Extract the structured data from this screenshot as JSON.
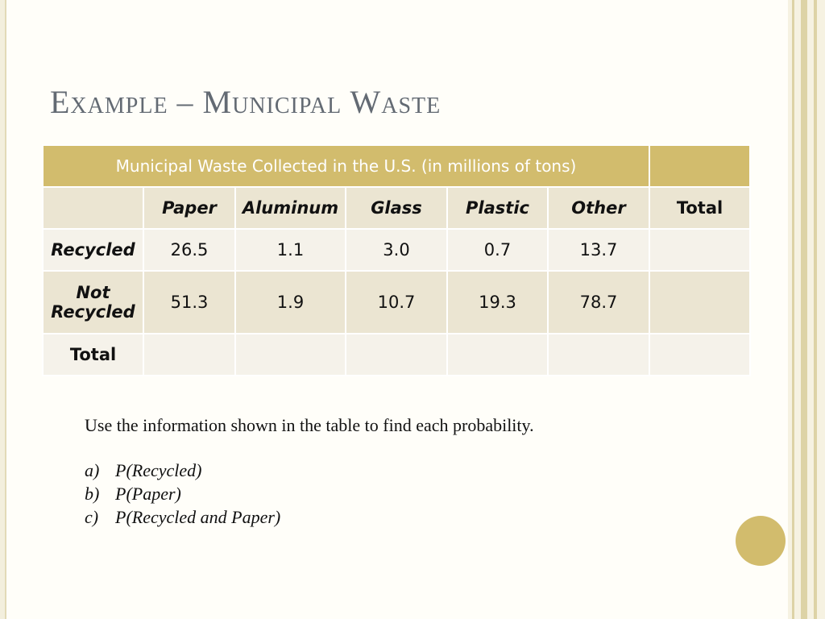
{
  "slide": {
    "title": "Example – Municipal Waste"
  },
  "table": {
    "caption": "Municipal Waste Collected in the U.S. (in millions of tons)",
    "columns": [
      "Paper",
      "Aluminum",
      "Glass",
      "Plastic",
      "Other",
      "Total"
    ],
    "rows": [
      {
        "label": "Recycled",
        "values": [
          "26.5",
          "1.1",
          "3.0",
          "0.7",
          "13.7",
          ""
        ]
      },
      {
        "label_line1": "Not",
        "label_line2": "Recycled",
        "values": [
          "51.3",
          "1.9",
          "10.7",
          "19.3",
          "78.7",
          ""
        ]
      },
      {
        "label": "Total",
        "values": [
          "",
          "",
          "",
          "",
          "",
          ""
        ]
      }
    ]
  },
  "body": {
    "instruction": "Use the information shown in the table to find each probability.",
    "questions": [
      {
        "marker": "a)",
        "text": "P(Recycled)"
      },
      {
        "marker": "b)",
        "text": "P(Paper)"
      },
      {
        "marker": "c)",
        "text": "P(Recycled and Paper)"
      }
    ]
  },
  "colors": {
    "accent": "#d2bc6d",
    "title": "#636a73",
    "row_dark": "#ebe5d2",
    "row_light": "#f5f2ea"
  }
}
